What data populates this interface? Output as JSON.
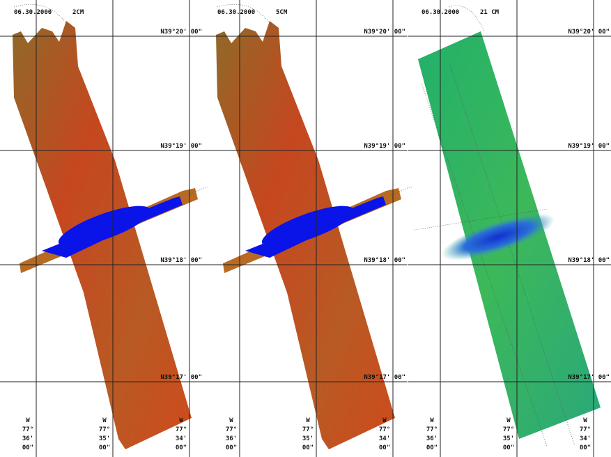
{
  "panels": [
    {
      "date": "06.30.2000",
      "depth": "2CM",
      "latitudes": [
        "N39°20' 00\"",
        "N39°19' 00\"",
        "N39°18' 00\"",
        "N39°17' 00\""
      ],
      "longitudes": [
        [
          "W",
          "77°",
          "36'",
          "00\""
        ],
        [
          "W",
          "77°",
          "35'",
          "00\""
        ],
        [
          "W",
          "77°",
          "34'",
          "00\""
        ]
      ]
    },
    {
      "date": "06.30.2000",
      "depth": "5CM",
      "latitudes": [
        "N39°20' 00\"",
        "N39°19' 00\"",
        "N39°18' 00\"",
        "N39°17' 00\""
      ],
      "longitudes": [
        [
          "W",
          "77°",
          "36'",
          "00\""
        ],
        [
          "W",
          "77°",
          "35'",
          "00\""
        ],
        [
          "W",
          "77°",
          "34'",
          "00\""
        ]
      ]
    },
    {
      "date": "06.30.2000",
      "depth": "21 CM",
      "latitudes": [
        "N39°20' 00\"",
        "N39°19' 00\"",
        "N39°18' 00\"",
        "N39°17' 00\""
      ],
      "longitudes": [
        [
          "W",
          "77°",
          "36'",
          "00\""
        ],
        [
          "W",
          "77°",
          "35'",
          "00\""
        ],
        [
          "W",
          "77°",
          "34'",
          "00\""
        ]
      ]
    }
  ]
}
